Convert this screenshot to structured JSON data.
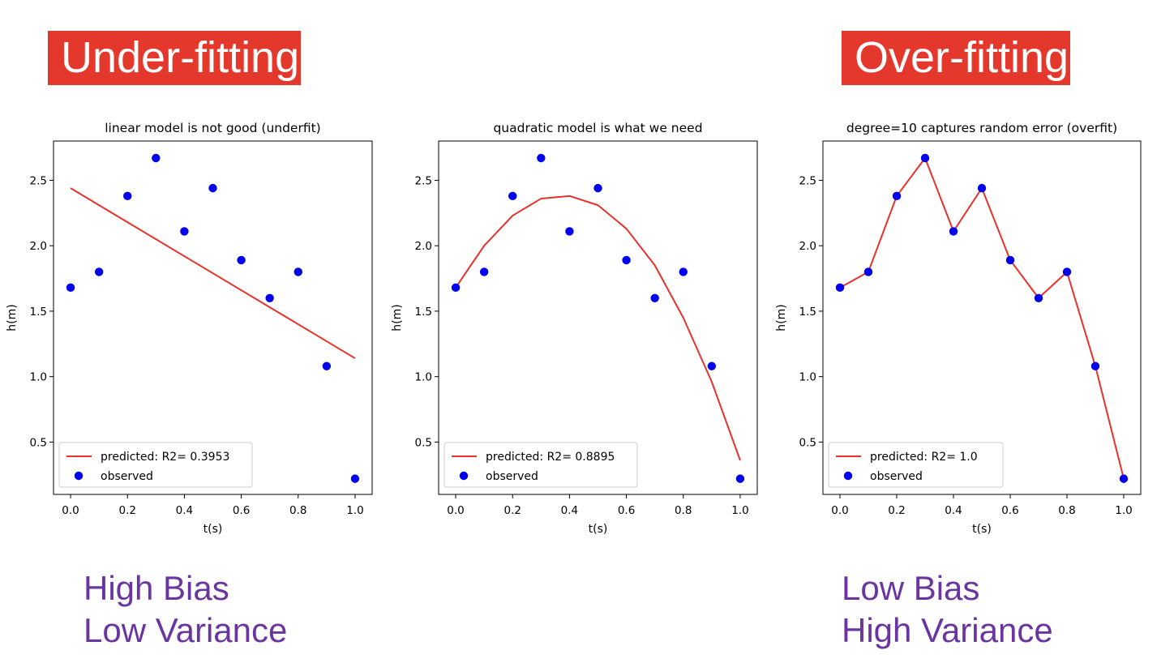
{
  "headlines": {
    "left": "Under-fitting",
    "right": "Over-fitting"
  },
  "notes": {
    "left": {
      "bias": "High Bias",
      "variance": "Low Variance"
    },
    "right": {
      "bias": "Low Bias",
      "variance": "High Variance"
    }
  },
  "colors": {
    "headline_bg": "#e3382b",
    "note_text": "#6a35a0",
    "predicted_line": "#e8312a",
    "observed_points": "#0000ee"
  },
  "chart_data": [
    {
      "type": "line",
      "title": "linear model is not good (underfit)",
      "xlabel": "t(s)",
      "ylabel": "h(m)",
      "xlim": [
        -0.06,
        1.06
      ],
      "ylim": [
        0.1,
        2.8
      ],
      "xticks": [
        "0.0",
        "0.2",
        "0.4",
        "0.6",
        "0.8",
        "1.0"
      ],
      "yticks": [
        "0.5",
        "1.0",
        "1.5",
        "2.0",
        "2.5"
      ],
      "legend_position": "lower-left",
      "series": [
        {
          "name": "predicted: R2= 0.3953",
          "kind": "line",
          "x": [
            0.0,
            1.0
          ],
          "y": [
            2.44,
            1.14
          ]
        },
        {
          "name": "observed",
          "kind": "scatter",
          "x": [
            0.0,
            0.1,
            0.2,
            0.3,
            0.4,
            0.5,
            0.6,
            0.7,
            0.8,
            0.9,
            1.0
          ],
          "y": [
            1.68,
            1.8,
            2.38,
            2.67,
            2.11,
            2.44,
            1.89,
            1.6,
            1.8,
            1.08,
            0.22
          ]
        }
      ]
    },
    {
      "type": "line",
      "title": "quadratic model is what we need",
      "xlabel": "t(s)",
      "ylabel": "h(m)",
      "xlim": [
        -0.06,
        1.06
      ],
      "ylim": [
        0.1,
        2.8
      ],
      "xticks": [
        "0.0",
        "0.2",
        "0.4",
        "0.6",
        "0.8",
        "1.0"
      ],
      "yticks": [
        "0.5",
        "1.0",
        "1.5",
        "2.0",
        "2.5"
      ],
      "legend_position": "lower-left",
      "series": [
        {
          "name": "predicted: R2= 0.8895",
          "kind": "line",
          "x": [
            0.0,
            0.1,
            0.2,
            0.3,
            0.4,
            0.5,
            0.6,
            0.7,
            0.8,
            0.9,
            1.0
          ],
          "y": [
            1.68,
            2.0,
            2.23,
            2.36,
            2.38,
            2.31,
            2.13,
            1.85,
            1.45,
            0.96,
            0.36
          ]
        },
        {
          "name": "observed",
          "kind": "scatter",
          "x": [
            0.0,
            0.1,
            0.2,
            0.3,
            0.4,
            0.5,
            0.6,
            0.7,
            0.8,
            0.9,
            1.0
          ],
          "y": [
            1.68,
            1.8,
            2.38,
            2.67,
            2.11,
            2.44,
            1.89,
            1.6,
            1.8,
            1.08,
            0.22
          ]
        }
      ]
    },
    {
      "type": "line",
      "title": "degree=10 captures random error (overfit)",
      "xlabel": "t(s)",
      "ylabel": "h(m)",
      "xlim": [
        -0.06,
        1.06
      ],
      "ylim": [
        0.1,
        2.8
      ],
      "xticks": [
        "0.0",
        "0.2",
        "0.4",
        "0.6",
        "0.8",
        "1.0"
      ],
      "yticks": [
        "0.5",
        "1.0",
        "1.5",
        "2.0",
        "2.5"
      ],
      "legend_position": "lower-left",
      "series": [
        {
          "name": "predicted: R2= 1.0",
          "kind": "line",
          "x": [
            0.0,
            0.1,
            0.2,
            0.3,
            0.4,
            0.5,
            0.6,
            0.7,
            0.8,
            0.9,
            1.0
          ],
          "y": [
            1.68,
            1.8,
            2.38,
            2.67,
            2.11,
            2.44,
            1.89,
            1.6,
            1.8,
            1.08,
            0.22
          ]
        },
        {
          "name": "observed",
          "kind": "scatter",
          "x": [
            0.0,
            0.1,
            0.2,
            0.3,
            0.4,
            0.5,
            0.6,
            0.7,
            0.8,
            0.9,
            1.0
          ],
          "y": [
            1.68,
            1.8,
            2.38,
            2.67,
            2.11,
            2.44,
            1.89,
            1.6,
            1.8,
            1.08,
            0.22
          ]
        }
      ]
    }
  ]
}
